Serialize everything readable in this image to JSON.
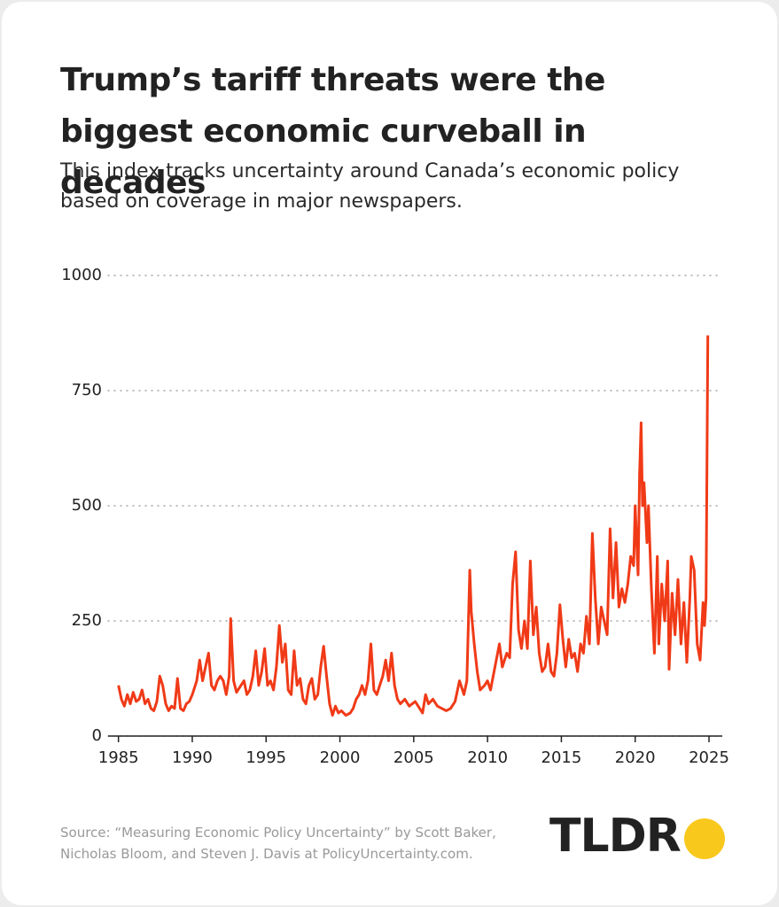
{
  "chart_data": {
    "type": "line",
    "title": "Trump’s tariff threats were the biggest economic curveball in decades",
    "subtitle": "This index tracks uncertainty around Canada’s economic policy based on coverage in major newspapers.",
    "source": "Source: “Measuring Economic Policy Uncertainty” by Scott Baker, Nicholas Bloom, and Steven J. Davis at PolicyUncertainty.com.",
    "brand": "TLDR",
    "color": "#f03a17",
    "grid": true,
    "xlim": [
      1984.3,
      2025.9
    ],
    "xticks": [
      1985,
      1990,
      1995,
      2000,
      2005,
      2010,
      2015,
      2020,
      2025
    ],
    "ylim": [
      0,
      1000
    ],
    "yticks": [
      0,
      250,
      500,
      750,
      1000
    ],
    "x": [
      1985.0,
      1985.2,
      1985.4,
      1985.6,
      1985.8,
      1986.0,
      1986.2,
      1986.4,
      1986.6,
      1986.8,
      1987.0,
      1987.2,
      1987.4,
      1987.6,
      1987.8,
      1988.0,
      1988.2,
      1988.4,
      1988.6,
      1988.8,
      1989.0,
      1989.2,
      1989.4,
      1989.6,
      1989.8,
      1990.0,
      1990.3,
      1990.5,
      1990.7,
      1990.9,
      1991.1,
      1991.3,
      1991.5,
      1991.7,
      1991.9,
      1992.1,
      1992.3,
      1992.5,
      1992.6,
      1992.8,
      1993.0,
      1993.3,
      1993.5,
      1993.7,
      1993.9,
      1994.1,
      1994.3,
      1994.5,
      1994.7,
      1994.9,
      1995.1,
      1995.3,
      1995.5,
      1995.7,
      1995.9,
      1996.1,
      1996.3,
      1996.5,
      1996.7,
      1996.9,
      1997.1,
      1997.3,
      1997.5,
      1997.7,
      1997.9,
      1998.1,
      1998.3,
      1998.5,
      1998.7,
      1998.9,
      1999.1,
      1999.3,
      1999.5,
      1999.7,
      1999.9,
      2000.1,
      2000.4,
      2000.7,
      2000.9,
      2001.1,
      2001.3,
      2001.5,
      2001.7,
      2001.9,
      2002.1,
      2002.3,
      2002.5,
      2002.7,
      2002.9,
      2003.1,
      2003.3,
      2003.5,
      2003.7,
      2003.9,
      2004.1,
      2004.4,
      2004.7,
      2004.9,
      2005.1,
      2005.4,
      2005.6,
      2005.8,
      2006.0,
      2006.3,
      2006.6,
      2006.9,
      2007.2,
      2007.5,
      2007.8,
      2008.1,
      2008.4,
      2008.6,
      2008.8,
      2008.9,
      2009.1,
      2009.3,
      2009.5,
      2009.8,
      2010.0,
      2010.2,
      2010.5,
      2010.8,
      2011.0,
      2011.3,
      2011.5,
      2011.7,
      2011.9,
      2012.1,
      2012.3,
      2012.5,
      2012.7,
      2012.9,
      2013.1,
      2013.3,
      2013.5,
      2013.7,
      2013.9,
      2014.1,
      2014.3,
      2014.5,
      2014.7,
      2014.9,
      2015.1,
      2015.3,
      2015.5,
      2015.7,
      2015.9,
      2016.1,
      2016.3,
      2016.5,
      2016.7,
      2016.9,
      2017.1,
      2017.3,
      2017.5,
      2017.7,
      2017.9,
      2018.1,
      2018.3,
      2018.5,
      2018.7,
      2018.9,
      2019.1,
      2019.3,
      2019.5,
      2019.7,
      2019.9,
      2020.0,
      2020.2,
      2020.3,
      2020.4,
      2020.5,
      2020.6,
      2020.8,
      2020.9,
      2021.1,
      2021.3,
      2021.5,
      2021.6,
      2021.8,
      2022.0,
      2022.2,
      2022.3,
      2022.5,
      2022.7,
      2022.9,
      2023.1,
      2023.3,
      2023.5,
      2023.7,
      2023.8,
      2024.0,
      2024.2,
      2024.4,
      2024.6,
      2024.7,
      2024.8,
      2024.92
    ],
    "values": [
      110,
      80,
      65,
      90,
      70,
      95,
      75,
      80,
      100,
      70,
      80,
      60,
      55,
      75,
      130,
      110,
      70,
      55,
      65,
      60,
      125,
      60,
      55,
      70,
      75,
      90,
      120,
      165,
      120,
      150,
      180,
      110,
      100,
      120,
      130,
      120,
      90,
      130,
      255,
      120,
      95,
      110,
      120,
      90,
      100,
      130,
      185,
      110,
      140,
      190,
      110,
      120,
      100,
      150,
      240,
      160,
      200,
      100,
      90,
      185,
      110,
      125,
      80,
      70,
      110,
      125,
      80,
      90,
      150,
      195,
      130,
      70,
      45,
      65,
      50,
      55,
      45,
      50,
      60,
      80,
      90,
      110,
      90,
      120,
      200,
      100,
      90,
      110,
      130,
      165,
      120,
      180,
      110,
      80,
      70,
      80,
      65,
      70,
      75,
      60,
      50,
      90,
      70,
      80,
      65,
      60,
      55,
      60,
      75,
      120,
      90,
      120,
      360,
      270,
      200,
      140,
      100,
      110,
      120,
      100,
      150,
      200,
      150,
      180,
      170,
      330,
      400,
      230,
      190,
      250,
      190,
      380,
      220,
      280,
      180,
      140,
      150,
      200,
      140,
      130,
      180,
      285,
      210,
      150,
      210,
      170,
      180,
      140,
      200,
      180,
      260,
      200,
      440,
      300,
      200,
      280,
      250,
      220,
      450,
      300,
      420,
      280,
      320,
      290,
      330,
      390,
      370,
      500,
      350,
      570,
      680,
      500,
      550,
      420,
      500,
      320,
      180,
      390,
      200,
      330,
      250,
      380,
      145,
      310,
      220,
      340,
      200,
      290,
      160,
      300,
      390,
      360,
      200,
      165,
      290,
      240,
      300,
      870
    ]
  }
}
